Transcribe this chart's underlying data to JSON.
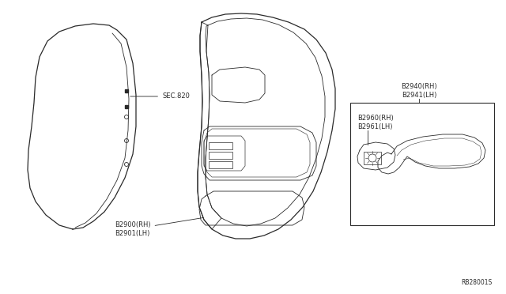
{
  "bg_color": "#ffffff",
  "fig_width": 6.4,
  "fig_height": 3.72,
  "dpi": 100,
  "line_color": "#2a2a2a",
  "label_fontsize": 6.0,
  "small_fontsize": 5.5,
  "rb_label": "RB28001S",
  "sec820_label": "SEC.820",
  "b2900_label": "B2900(RH)\nB2901(LH)",
  "b2940_label": "B2940(RH)\nB2941(LH)",
  "b2960_label": "B2960(RH)\nB2961(LH)"
}
